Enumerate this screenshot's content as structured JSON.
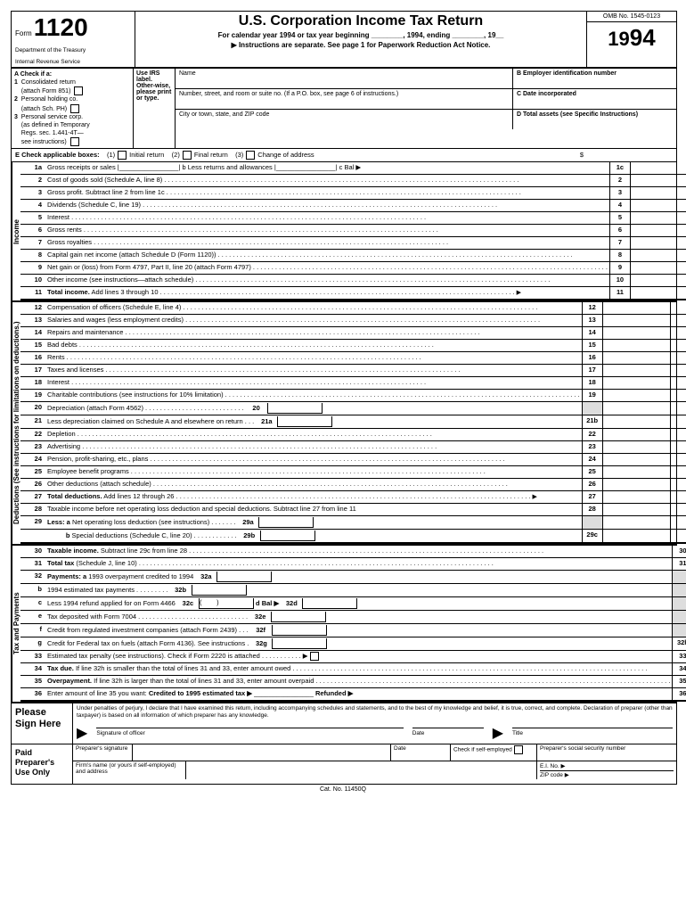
{
  "header": {
    "form_word": "Form",
    "form_no": "1120",
    "dept1": "Department of the Treasury",
    "dept2": "Internal Revenue Service",
    "title": "U.S. Corporation Income Tax Return",
    "sub1": "For calendar year 1994 or tax year beginning ________, 1994, ending ________, 19__",
    "sub2": "▶ Instructions are separate. See page 1 for Paperwork Reduction Act Notice.",
    "omb": "OMB No. 1545-0123",
    "year_prefix": "19",
    "year_suffix": "94"
  },
  "sectionA": {
    "heading": "A Check if a:",
    "items": [
      "1  Consolidated return (attach Form 851)",
      "2  Personal holding co. (attach Sch. PH)",
      "3  Personal service corp. (as defined in Temporary Regs. sec. 1.441-4T— see instructions)"
    ],
    "use_label": "Use IRS label. Other-wise, please print or type.",
    "name_label": "Name",
    "addr_label": "Number, street, and room or suite no. (If a P.O. box, see page 6 of instructions.)",
    "city_label": "City or town, state, and ZIP code",
    "b_label": "B Employer identification number",
    "c_label": "C Date incorporated",
    "d_label": "D Total assets (see Specific Instructions)",
    "d_dollar": "$"
  },
  "rowE": {
    "label": "E Check applicable boxes:",
    "opt1": "(1)",
    "opt1t": "Initial return",
    "opt2": "(2)",
    "opt2t": "Final return",
    "opt3": "(3)",
    "opt3t": "Change of address"
  },
  "sections": {
    "income": "Income",
    "deductions": "Deductions (See instructions for limitations on deductions.)",
    "tax": "Tax and Payments"
  },
  "income_lines": [
    {
      "no": "1a",
      "desc": "Gross receipts or sales |________________| b Less returns and allowances |________________|  c Bal ▶",
      "rno": "1c"
    },
    {
      "no": "2",
      "desc": "Cost of goods sold (Schedule A, line 8)",
      "rno": "2",
      "dots": true
    },
    {
      "no": "3",
      "desc": "Gross profit. Subtract line 2 from line 1c",
      "rno": "3",
      "dots": true
    },
    {
      "no": "4",
      "desc": "Dividends (Schedule C, line 19)",
      "rno": "4",
      "dots": true
    },
    {
      "no": "5",
      "desc": "Interest",
      "rno": "5",
      "dots": true
    },
    {
      "no": "6",
      "desc": "Gross rents",
      "rno": "6",
      "dots": true
    },
    {
      "no": "7",
      "desc": "Gross royalties",
      "rno": "7",
      "dots": true
    },
    {
      "no": "8",
      "desc": "Capital gain net income (attach Schedule D (Form 1120))",
      "rno": "8",
      "dots": true
    },
    {
      "no": "9",
      "desc": "Net gain or (loss) from Form 4797, Part II, line 20 (attach Form 4797)",
      "rno": "9",
      "dots": true
    },
    {
      "no": "10",
      "desc": "Other income (see instructions—attach schedule)",
      "rno": "10",
      "dots": true
    },
    {
      "no": "11",
      "desc": "<b>Total income.</b> Add lines 3 through 10",
      "rno": "11",
      "dots": true,
      "tri": true
    }
  ],
  "deduction_lines": [
    {
      "no": "12",
      "desc": "Compensation of officers (Schedule E, line 4)",
      "rno": "12",
      "dots": true
    },
    {
      "no": "13",
      "desc": "Salaries and wages (less employment credits)",
      "rno": "13",
      "dots": true
    },
    {
      "no": "14",
      "desc": "Repairs and maintenance",
      "rno": "14",
      "dots": true
    },
    {
      "no": "15",
      "desc": "Bad debts",
      "rno": "15",
      "dots": true
    },
    {
      "no": "16",
      "desc": "Rents",
      "rno": "16",
      "dots": true
    },
    {
      "no": "17",
      "desc": "Taxes and licenses",
      "rno": "17",
      "dots": true
    },
    {
      "no": "18",
      "desc": "Interest",
      "rno": "18",
      "dots": true
    },
    {
      "no": "19",
      "desc": "Charitable contributions (see instructions for 10% limitation)",
      "rno": "19",
      "dots": true
    },
    {
      "no": "20",
      "desc": "Depreciation (attach Form 4562)  . . . . . . . . . . . . . . . . . . . . . . . . . . .  <span class='midlbl'>20</span><span class='midbox'></span>",
      "rno": "",
      "shade": true
    },
    {
      "no": "21",
      "desc": "Less depreciation claimed on Schedule A and elsewhere on return . . . <span class='midlbl'>21a</span><span class='midbox'></span>",
      "rno": "21b"
    },
    {
      "no": "22",
      "desc": "Depletion",
      "rno": "22",
      "dots": true
    },
    {
      "no": "23",
      "desc": "Advertising",
      "rno": "23",
      "dots": true
    },
    {
      "no": "24",
      "desc": "Pension, profit-sharing, etc., plans",
      "rno": "24",
      "dots": true
    },
    {
      "no": "25",
      "desc": "Employee benefit programs",
      "rno": "25",
      "dots": true
    },
    {
      "no": "26",
      "desc": "Other deductions (attach schedule)",
      "rno": "26",
      "dots": true
    },
    {
      "no": "27",
      "desc": "<b>Total deductions.</b> Add lines 12 through 26",
      "rno": "27",
      "dots": true,
      "tri": true
    },
    {
      "no": "28",
      "desc": "Taxable income before net operating loss deduction and special deductions. Subtract line 27 from line 11",
      "rno": "28"
    },
    {
      "no": "29",
      "desc": "<b>Less:  a</b>  Net operating loss deduction (see instructions) . . . . . . . <span class='midlbl'>29a</span><span class='midbox'></span>",
      "rno": "",
      "shade": true
    },
    {
      "no": "",
      "desc": "&nbsp;&nbsp;&nbsp;&nbsp;&nbsp;&nbsp;&nbsp;&nbsp;&nbsp;&nbsp;<b>b</b>  Special deductions (Schedule C, line 20) . . . . . . . . . . . . <span class='midlbl'>29b</span><span class='midbox'></span>",
      "rno": "29c"
    }
  ],
  "tax_lines": [
    {
      "no": "30",
      "desc": "<b>Taxable income.</b> Subtract line 29c from line 28",
      "rno": "30",
      "dots": true
    },
    {
      "no": "31",
      "desc": "<b>Total tax</b> (Schedule J, line 10)",
      "rno": "31",
      "dots": true
    },
    {
      "no": "32",
      "desc": "<b>Payments: a</b> 1993 overpayment credited to 1994 <span class='midlbl'>32a</span><span class='midbox'></span>",
      "rno": "",
      "shade": true
    },
    {
      "no": "b",
      "desc": "1994 estimated tax payments . . . . . . . . . <span class='midlbl'>32b</span><span class='midbox'></span>",
      "rno": "",
      "shade": true
    },
    {
      "no": "c",
      "desc": "Less 1994 refund applied for on Form 4466 <span class='midlbl'>32c</span><span class='midbox'>(&nbsp;&nbsp;&nbsp;&nbsp;&nbsp;&nbsp;&nbsp;&nbsp;)</span> <b>d Bal ▶</b> <span class='midlbl'>32d</span><span class='midbox'></span>",
      "rno": "",
      "shade": true
    },
    {
      "no": "e",
      "desc": "Tax deposited with Form 7004 . . . . . . . . . . . . . . . . . . . . . . . . . . . . . . <span class='midlbl'>32e</span><span class='midbox'></span>",
      "rno": "",
      "shade": true
    },
    {
      "no": "f",
      "desc": "Credit from regulated investment companies (attach Form 2439) . . . <span class='midlbl'>32f</span><span class='midbox'></span>",
      "rno": "",
      "shade": true
    },
    {
      "no": "g",
      "desc": "Credit for Federal tax on fuels (attach Form 4136). See instructions . <span class='midlbl'>32g</span><span class='midbox'></span>",
      "rno": "32h"
    },
    {
      "no": "33",
      "desc": "Estimated tax penalty (see instructions). Check if Form 2220 is attached . . . . . . . . . . . ▶ <span class='ck2'></span>",
      "rno": "33"
    },
    {
      "no": "34",
      "desc": "<b>Tax due.</b> If line 32h is smaller than the total of lines 31 and 33, enter amount owed",
      "rno": "34",
      "dots": true
    },
    {
      "no": "35",
      "desc": "<b>Overpayment.</b> If line 32h is larger than the total of lines 31 and 33, enter amount overpaid",
      "rno": "35",
      "dots": true
    },
    {
      "no": "36",
      "desc": "Enter amount of line 35 you want: <b>Credited to 1995 estimated tax ▶</b> ________________ <b>Refunded ▶</b>",
      "rno": "36"
    }
  ],
  "sign": {
    "label": "Please Sign Here",
    "perjury": "Under penalties of perjury, I declare that I have examined this return, including accompanying schedules and statements, and to the best of my knowledge and belief, it is true, correct, and complete. Declaration of preparer (other than taxpayer) is based on all information of which preparer has any knowledge.",
    "sig_officer": "Signature of officer",
    "date": "Date",
    "title": "Title"
  },
  "preparer": {
    "label": "Paid Preparer's Use Only",
    "sig": "Preparer's signature",
    "date": "Date",
    "self": "Check if self-employed",
    "ssn": "Preparer's social security number",
    "firm": "Firm's name (or yours if self-employed) and address",
    "ein": "E.I. No. ▶",
    "zip": "ZIP code ▶"
  },
  "footer": "Cat. No. 11450Q"
}
